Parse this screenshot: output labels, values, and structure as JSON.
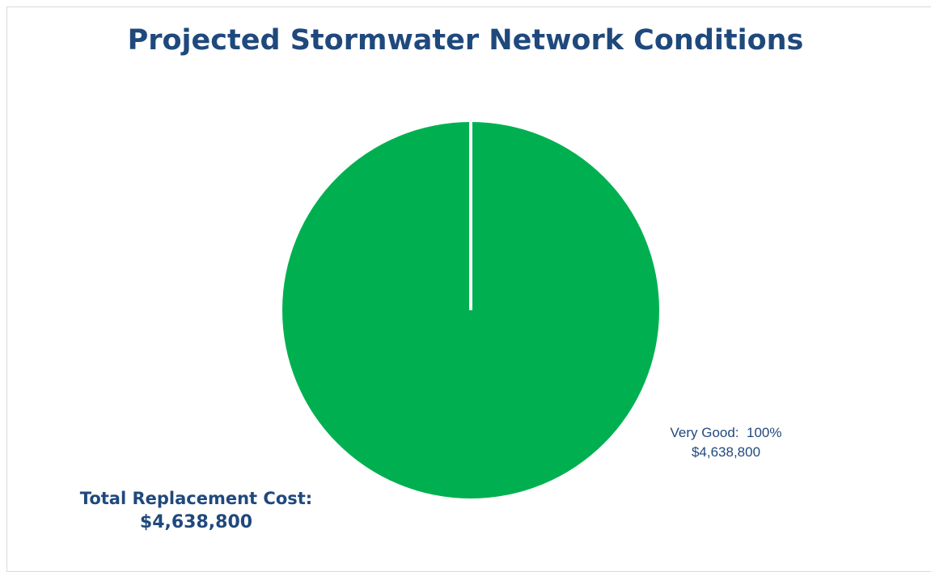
{
  "chart_data": {
    "type": "pie",
    "title": "Projected Stormwater Network Conditions",
    "slices": [
      {
        "label": "Very Good",
        "percent": 100,
        "value": 4638800,
        "value_label": "$4,638,800",
        "color": "#00b050"
      }
    ],
    "data_labels": [
      {
        "line1": "Very Good:  100%",
        "line2": "$4,638,800"
      }
    ],
    "legend": "none",
    "total": {
      "label": "Total Replacement Cost:",
      "value": 4638800,
      "value_label": "$4,638,800"
    }
  },
  "colors": {
    "title": "#1f497d",
    "very_good": "#00b050",
    "slice_border": "#ffffff"
  }
}
